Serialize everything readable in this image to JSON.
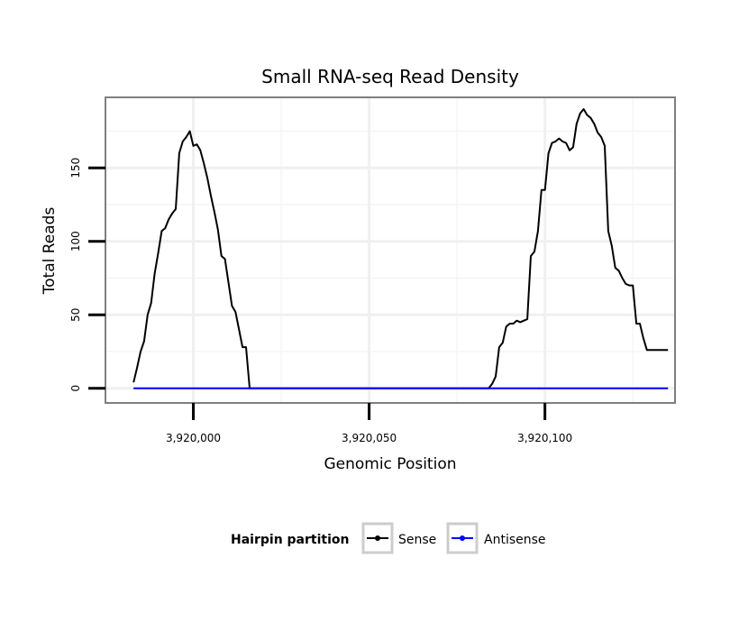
{
  "chart_data": {
    "type": "line",
    "title": "Small RNA-seq Read Density",
    "xlabel": "Genomic Position",
    "ylabel": "Total Reads",
    "xlim": [
      3919975,
      3920137
    ],
    "ylim": [
      -10,
      198
    ],
    "x_ticks": [
      3920000,
      3920050,
      3920100
    ],
    "x_tick_labels": [
      "3,920,000",
      "3,920,050",
      "3,920,100"
    ],
    "y_ticks": [
      0,
      50,
      100,
      150
    ],
    "y_tick_labels": [
      "0",
      "50",
      "100",
      "150"
    ],
    "grid": true,
    "legend": {
      "title": "Hairpin partition",
      "position": "bottom",
      "entries": [
        {
          "name": "Sense",
          "color": "#000000"
        },
        {
          "name": "Antisense",
          "color": "#0000ff"
        }
      ]
    },
    "series": [
      {
        "name": "Sense",
        "color": "#000000",
        "x": [
          3919983,
          3919984,
          3919985,
          3919986,
          3919987,
          3919988,
          3919989,
          3919990,
          3919991,
          3919992,
          3919993,
          3919994,
          3919995,
          3919996,
          3919997,
          3919998,
          3919999,
          3920000,
          3920001,
          3920002,
          3920003,
          3920004,
          3920005,
          3920006,
          3920007,
          3920008,
          3920009,
          3920010,
          3920011,
          3920012,
          3920013,
          3920014,
          3920015,
          3920016,
          3920017,
          3920018,
          3920019,
          3920020,
          3920084,
          3920085,
          3920086,
          3920087,
          3920088,
          3920089,
          3920090,
          3920091,
          3920092,
          3920093,
          3920094,
          3920095,
          3920096,
          3920097,
          3920098,
          3920099,
          3920100,
          3920101,
          3920102,
          3920103,
          3920104,
          3920105,
          3920106,
          3920107,
          3920108,
          3920109,
          3920110,
          3920111,
          3920112,
          3920113,
          3920114,
          3920115,
          3920116,
          3920117,
          3920118,
          3920119,
          3920120,
          3920121,
          3920122,
          3920123,
          3920124,
          3920125,
          3920126,
          3920127,
          3920128,
          3920129,
          3920130,
          3920131,
          3920132,
          3920133,
          3920134,
          3920135
        ],
        "y": [
          4,
          14,
          25,
          32,
          50,
          58,
          78,
          92,
          107,
          109,
          115,
          119,
          122,
          160,
          168,
          171,
          175,
          165,
          166,
          162,
          153,
          143,
          131,
          120,
          108,
          90,
          88,
          72,
          56,
          52,
          40,
          28,
          28,
          0,
          0,
          0,
          0,
          0,
          0,
          3,
          8,
          28,
          31,
          42,
          44,
          44,
          46,
          45,
          46,
          47,
          90,
          93,
          107,
          135,
          135,
          160,
          167,
          168,
          170,
          168,
          167,
          162,
          164,
          180,
          187,
          190,
          186,
          184,
          180,
          174,
          171,
          165,
          107,
          97,
          82,
          80,
          75,
          71,
          70,
          70,
          44,
          44,
          34,
          26,
          26,
          26,
          26,
          26,
          26,
          26
        ],
        "values_note": ""
      },
      {
        "name": "Antisense",
        "color": "#0000ff",
        "x": [
          3919983,
          3920135
        ],
        "y": [
          0,
          0
        ]
      }
    ]
  }
}
